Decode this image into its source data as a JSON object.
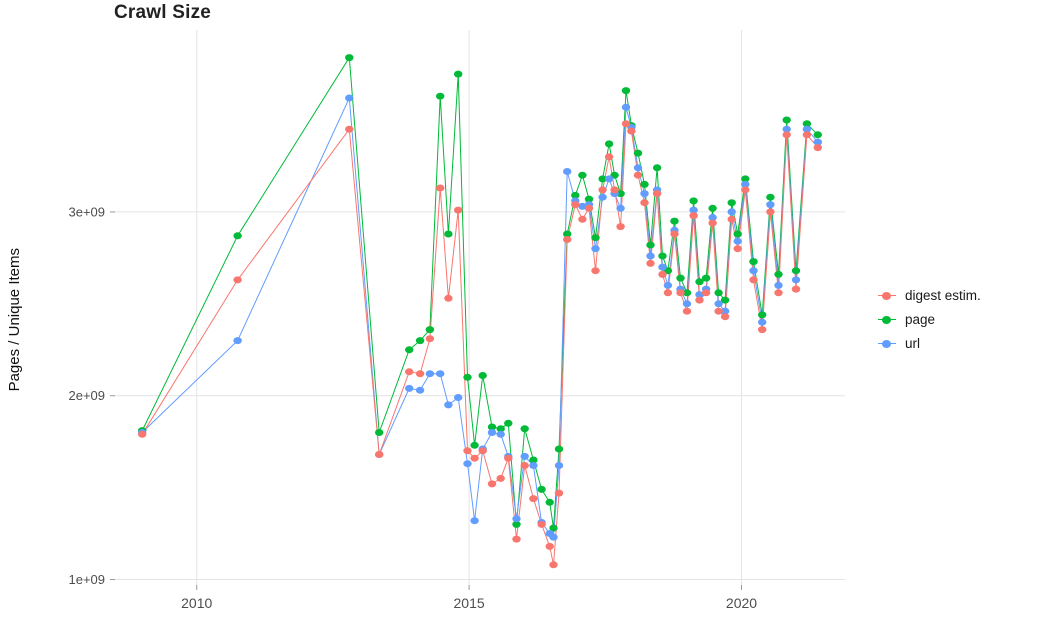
{
  "page": {
    "title": "Crawl Size"
  },
  "chart_data": {
    "type": "line",
    "title": "Crawl Size",
    "xlabel": "",
    "ylabel": "Pages / Unique Items",
    "grid": true,
    "legend_position": "right",
    "marker": "point",
    "x_ticks": [
      2010,
      2015,
      2020
    ],
    "x_tick_labels": [
      "2010",
      "2015",
      "2020"
    ],
    "y_ticks": [
      1000000000.0,
      2000000000.0,
      3000000000.0
    ],
    "y_tick_labels": [
      "1e+09",
      "2e+09",
      "3e+09"
    ],
    "xlim": [
      2008.5,
      2021.9
    ],
    "ylim": [
      970000000.0,
      3990000000.0
    ],
    "draw_order": [
      "page",
      "url",
      "digest estim."
    ],
    "x": [
      2009.0,
      2010.75,
      2012.8,
      2013.35,
      2013.9,
      2014.1,
      2014.28,
      2014.47,
      2014.62,
      2014.8,
      2014.97,
      2015.1,
      2015.25,
      2015.42,
      2015.58,
      2015.72,
      2015.87,
      2016.02,
      2016.18,
      2016.33,
      2016.48,
      2016.55,
      2016.65,
      2016.8,
      2016.95,
      2017.08,
      2017.2,
      2017.32,
      2017.45,
      2017.57,
      2017.67,
      2017.78,
      2017.88,
      2017.98,
      2018.1,
      2018.22,
      2018.33,
      2018.45,
      2018.55,
      2018.65,
      2018.77,
      2018.88,
      2019.0,
      2019.12,
      2019.23,
      2019.35,
      2019.47,
      2019.58,
      2019.7,
      2019.82,
      2019.93,
      2020.07,
      2020.22,
      2020.38,
      2020.53,
      2020.68,
      2020.83,
      2021.0,
      2021.2,
      2021.4
    ],
    "series": [
      {
        "name": "digest estim.",
        "color": "#F8766D",
        "values": [
          1790000000.0,
          2630000000.0,
          3450000000.0,
          1680000000.0,
          2130000000.0,
          2120000000.0,
          2310000000.0,
          3130000000.0,
          2530000000.0,
          3010000000.0,
          1700000000.0,
          1660000000.0,
          1700000000.0,
          1520000000.0,
          1550000000.0,
          1660000000.0,
          1220000000.0,
          1620000000.0,
          1440000000.0,
          1300000000.0,
          1180000000.0,
          1080000000.0,
          1470000000.0,
          2850000000.0,
          3040000000.0,
          2960000000.0,
          3020000000.0,
          2680000000.0,
          3120000000.0,
          3300000000.0,
          3120000000.0,
          2920000000.0,
          3480000000.0,
          3440000000.0,
          3200000000.0,
          3050000000.0,
          2720000000.0,
          3100000000.0,
          2660000000.0,
          2560000000.0,
          2880000000.0,
          2560000000.0,
          2460000000.0,
          2980000000.0,
          2520000000.0,
          2560000000.0,
          2940000000.0,
          2460000000.0,
          2430000000.0,
          2960000000.0,
          2800000000.0,
          3120000000.0,
          2630000000.0,
          2360000000.0,
          3000000000.0,
          2560000000.0,
          3420000000.0,
          2580000000.0,
          3420000000.0,
          3350000000.0
        ]
      },
      {
        "name": "page",
        "color": "#00BA38",
        "values": [
          1810000000.0,
          2870000000.0,
          3840000000.0,
          1800000000.0,
          2250000000.0,
          2300000000.0,
          2360000000.0,
          3630000000.0,
          2880000000.0,
          3750000000.0,
          2100000000.0,
          1730000000.0,
          2110000000.0,
          1830000000.0,
          1820000000.0,
          1850000000.0,
          1300000000.0,
          1820000000.0,
          1650000000.0,
          1490000000.0,
          1420000000.0,
          1280000000.0,
          1710000000.0,
          2880000000.0,
          3090000000.0,
          3200000000.0,
          3070000000.0,
          2860000000.0,
          3180000000.0,
          3370000000.0,
          3200000000.0,
          3100000000.0,
          3660000000.0,
          3470000000.0,
          3320000000.0,
          3150000000.0,
          2820000000.0,
          3240000000.0,
          2760000000.0,
          2680000000.0,
          2950000000.0,
          2640000000.0,
          2560000000.0,
          3060000000.0,
          2620000000.0,
          2640000000.0,
          3020000000.0,
          2560000000.0,
          2520000000.0,
          3050000000.0,
          2880000000.0,
          3180000000.0,
          2730000000.0,
          2440000000.0,
          3080000000.0,
          2660000000.0,
          3500000000.0,
          2680000000.0,
          3480000000.0,
          3420000000.0
        ]
      },
      {
        "name": "url",
        "color": "#619CFF",
        "values": [
          1800000000.0,
          2300000000.0,
          3620000000.0,
          1680000000.0,
          2040000000.0,
          2030000000.0,
          2120000000.0,
          2120000000.0,
          1950000000.0,
          1990000000.0,
          1630000000.0,
          1320000000.0,
          1710000000.0,
          1800000000.0,
          1790000000.0,
          1670000000.0,
          1330000000.0,
          1670000000.0,
          1620000000.0,
          1310000000.0,
          1250000000.0,
          1230000000.0,
          1620000000.0,
          3220000000.0,
          3060000000.0,
          3030000000.0,
          3040000000.0,
          2800000000.0,
          3080000000.0,
          3180000000.0,
          3100000000.0,
          3020000000.0,
          3570000000.0,
          3460000000.0,
          3240000000.0,
          3100000000.0,
          2760000000.0,
          3120000000.0,
          2700000000.0,
          2600000000.0,
          2900000000.0,
          2580000000.0,
          2500000000.0,
          3010000000.0,
          2550000000.0,
          2580000000.0,
          2970000000.0,
          2500000000.0,
          2460000000.0,
          3000000000.0,
          2840000000.0,
          3150000000.0,
          2680000000.0,
          2400000000.0,
          3040000000.0,
          2600000000.0,
          3450000000.0,
          2630000000.0,
          3450000000.0,
          3380000000.0
        ]
      }
    ]
  }
}
